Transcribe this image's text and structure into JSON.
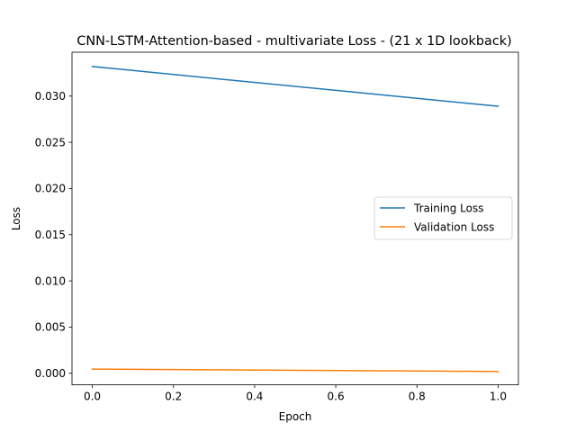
{
  "chart_data": {
    "type": "line",
    "title": "CNN-LSTM-Attention-based - multivariate Loss - (21 x 1D lookback)",
    "xlabel": "Epoch",
    "ylabel": "Loss",
    "xlim": [
      -0.05,
      1.05
    ],
    "ylim": [
      -0.00125,
      0.03475
    ],
    "x_ticks": [
      0.0,
      0.2,
      0.4,
      0.6,
      0.8,
      1.0
    ],
    "x_tick_labels": [
      "0.0",
      "0.2",
      "0.4",
      "0.6",
      "0.8",
      "1.0"
    ],
    "y_ticks": [
      0.0,
      0.005,
      0.01,
      0.015,
      0.02,
      0.025,
      0.03
    ],
    "y_tick_labels": [
      "0.000",
      "0.005",
      "0.010",
      "0.015",
      "0.020",
      "0.025",
      "0.030"
    ],
    "grid": false,
    "legend_position": "center-right",
    "x": [
      0,
      1
    ],
    "series": [
      {
        "name": "Training Loss",
        "values": [
          0.0332,
          0.0289
        ],
        "color": "#1f77b4"
      },
      {
        "name": "Validation Loss",
        "values": [
          0.00045,
          0.0002
        ],
        "color": "#ff7f0e"
      }
    ]
  }
}
